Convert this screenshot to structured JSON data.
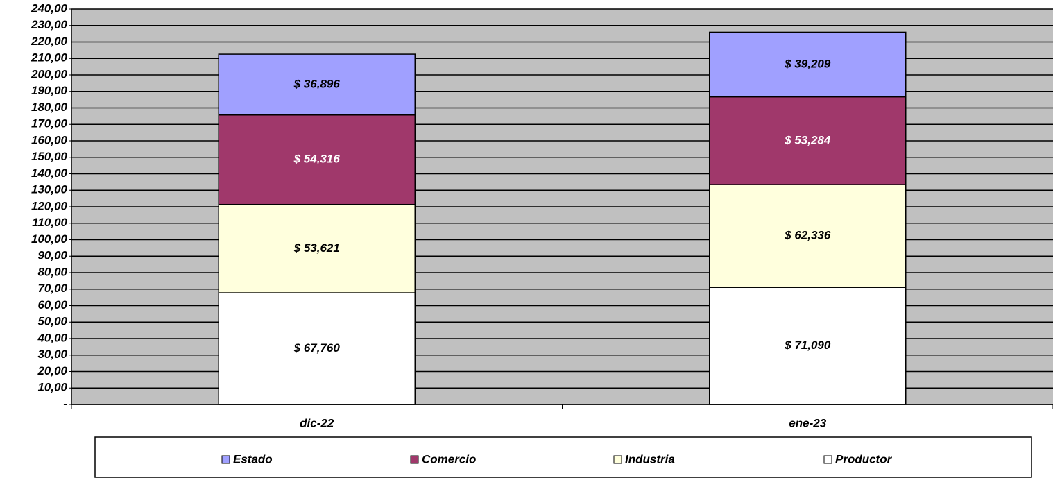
{
  "chart_data": {
    "type": "stacked_bar",
    "categories": [
      "dic-22",
      "ene-23"
    ],
    "series": [
      {
        "name": "Estado",
        "color": "#a0a0ff",
        "values": [
          36.896,
          39.209
        ],
        "value_labels": [
          "$ 36,896",
          "$ 39,209"
        ]
      },
      {
        "name": "Comercio",
        "color": "#a0386b",
        "values": [
          54.316,
          53.284
        ],
        "value_labels": [
          "$ 54,316",
          "$ 53,284"
        ]
      },
      {
        "name": "Industria",
        "color": "#ffffdd",
        "values": [
          53.621,
          62.336
        ],
        "value_labels": [
          "$ 53,621",
          "$ 62,336"
        ]
      },
      {
        "name": "Productor",
        "color": "#ffffff",
        "values": [
          67.76,
          71.09
        ],
        "value_labels": [
          "$ 67,760",
          "$ 71,090"
        ]
      }
    ],
    "ylim": [
      0,
      240
    ],
    "yticks": [
      {
        "value": 0,
        "label": "-"
      },
      {
        "value": 10,
        "label": "10,00"
      },
      {
        "value": 20,
        "label": "20,00"
      },
      {
        "value": 30,
        "label": "30,00"
      },
      {
        "value": 40,
        "label": "40,00"
      },
      {
        "value": 50,
        "label": "50,00"
      },
      {
        "value": 60,
        "label": "60,00"
      },
      {
        "value": 70,
        "label": "70,00"
      },
      {
        "value": 80,
        "label": "80,00"
      },
      {
        "value": 90,
        "label": "90,00"
      },
      {
        "value": 100,
        "label": "100,00"
      },
      {
        "value": 110,
        "label": "110,00"
      },
      {
        "value": 120,
        "label": "120,00"
      },
      {
        "value": 130,
        "label": "130,00"
      },
      {
        "value": 140,
        "label": "140,00"
      },
      {
        "value": 150,
        "label": "150,00"
      },
      {
        "value": 160,
        "label": "160,00"
      },
      {
        "value": 170,
        "label": "170,00"
      },
      {
        "value": 180,
        "label": "180,00"
      },
      {
        "value": 190,
        "label": "190,00"
      },
      {
        "value": 200,
        "label": "200,00"
      },
      {
        "value": 210,
        "label": "210,00"
      },
      {
        "value": 220,
        "label": "220,00"
      },
      {
        "value": 230,
        "label": "230,00"
      },
      {
        "value": 240,
        "label": "240,00"
      }
    ],
    "grid": true,
    "legend": "bottom"
  }
}
